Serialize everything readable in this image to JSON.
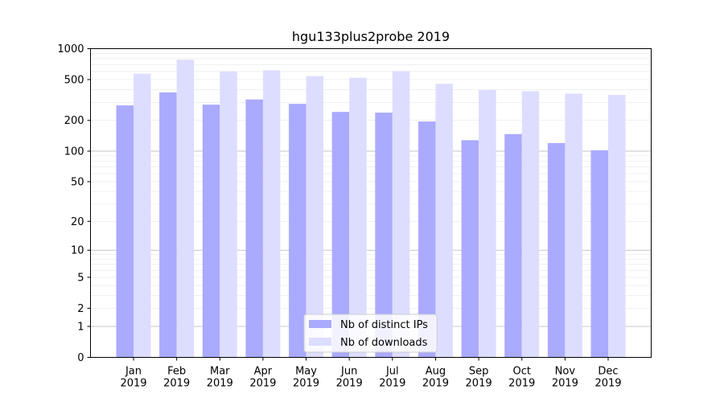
{
  "chart_data": {
    "type": "bar",
    "title": "hgu133plus2probe 2019",
    "xlabel": "",
    "ylabel": "",
    "yscale": "log1p",
    "ylim": [
      0,
      1000
    ],
    "yticks": [
      0,
      1,
      2,
      5,
      10,
      20,
      50,
      100,
      200,
      500,
      1000
    ],
    "categories": [
      "Jan\n2019",
      "Feb\n2019",
      "Mar\n2019",
      "Apr\n2019",
      "May\n2019",
      "Jun\n2019",
      "Jul\n2019",
      "Aug\n2019",
      "Sep\n2019",
      "Oct\n2019",
      "Nov\n2019",
      "Dec\n2019"
    ],
    "series": [
      {
        "name": "Nb of distinct IPs",
        "color": "#aaaaff",
        "values": [
          280,
          375,
          285,
          320,
          290,
          242,
          238,
          195,
          128,
          147,
          120,
          102
        ]
      },
      {
        "name": "Nb of downloads",
        "color": "#ddddff",
        "values": [
          570,
          780,
          600,
          615,
          540,
          520,
          605,
          455,
          395,
          385,
          365,
          355
        ]
      }
    ],
    "grid": true,
    "legend_position": "bottom-center"
  }
}
